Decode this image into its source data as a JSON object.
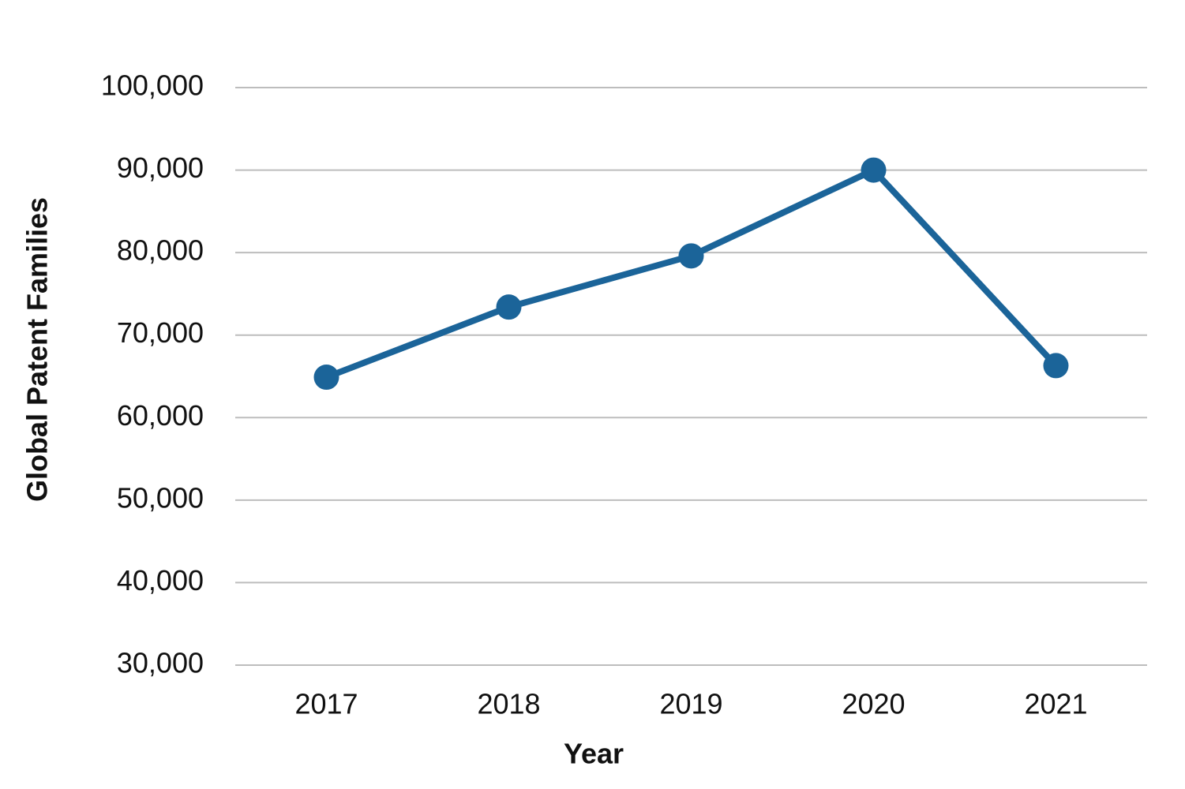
{
  "chart_data": {
    "type": "line",
    "x_label": "Year",
    "y_label": "Global Patent Families",
    "categories": [
      "2017",
      "2018",
      "2019",
      "2020",
      "2021"
    ],
    "series": [
      {
        "name": "Global Patent Families",
        "color": "#1b6499",
        "values": [
          64900,
          73400,
          79600,
          90000,
          66300
        ]
      }
    ],
    "ylim": [
      30000,
      100000
    ],
    "yticks": [
      {
        "value": 30000,
        "label": "30,000"
      },
      {
        "value": 40000,
        "label": "40,000"
      },
      {
        "value": 50000,
        "label": "50,000"
      },
      {
        "value": 60000,
        "label": "60,000"
      },
      {
        "value": 70000,
        "label": "70,000"
      },
      {
        "value": 80000,
        "label": "80,000"
      },
      {
        "value": 90000,
        "label": "90,000"
      },
      {
        "value": 100000,
        "label": "100,000"
      }
    ],
    "grid": true
  }
}
